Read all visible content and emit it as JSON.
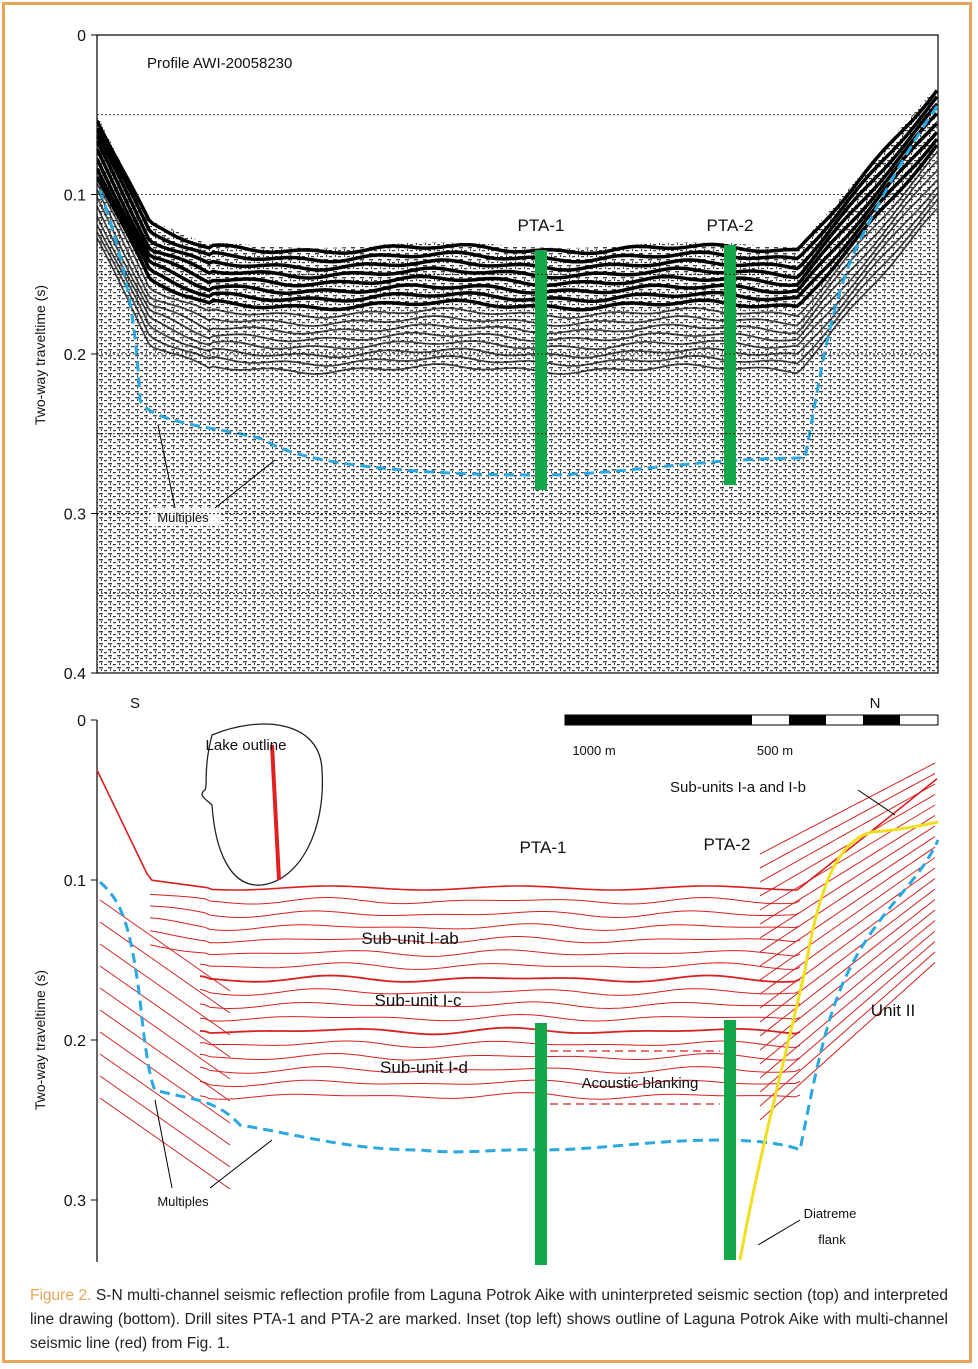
{
  "top_panel": {
    "title": "Profile AWI-20058230",
    "y_axis_label": "Two-way traveltime (s)",
    "yticks": [
      0,
      0.1,
      0.2,
      0.3,
      0.4
    ],
    "site_1": "PTA-1",
    "site_2": "PTA-2",
    "multiples": "Multiples",
    "left_end": "S",
    "right_end": "N"
  },
  "bottom_panel": {
    "y_axis_label": "Two-way traveltime (s)",
    "yticks": [
      0,
      0.1,
      0.2,
      0.3
    ],
    "inset_title": "Lake outline",
    "scale_left": "1000 m",
    "scale_mid": "500 m",
    "site_1": "PTA-1",
    "site_2": "PTA-2",
    "labels": {
      "sub_ab_top": "Sub-units I-a and I-b",
      "sub_ab": "Sub-unit I-ab",
      "sub_c": "Sub-unit I-c",
      "sub_d": "Sub-unit I-d",
      "blanking": "Acoustic blanking",
      "unit2": "Unit II",
      "multiples": "Multiples",
      "diatreme_1": "Diatreme",
      "diatreme_2": "flank"
    }
  },
  "caption": {
    "label": "Figure 2.",
    "text": "S-N multi-channel seismic reflection profile from Laguna Potrok Aike with uninterpreted seismic section (top) and interpreted line drawing (bottom).  Drill sites PTA-1 and PTA-2 are marked. Inset (top left) shows outline of Laguna Potrok Aike with multi-channel seismic line (red) from Fig. 1."
  }
}
